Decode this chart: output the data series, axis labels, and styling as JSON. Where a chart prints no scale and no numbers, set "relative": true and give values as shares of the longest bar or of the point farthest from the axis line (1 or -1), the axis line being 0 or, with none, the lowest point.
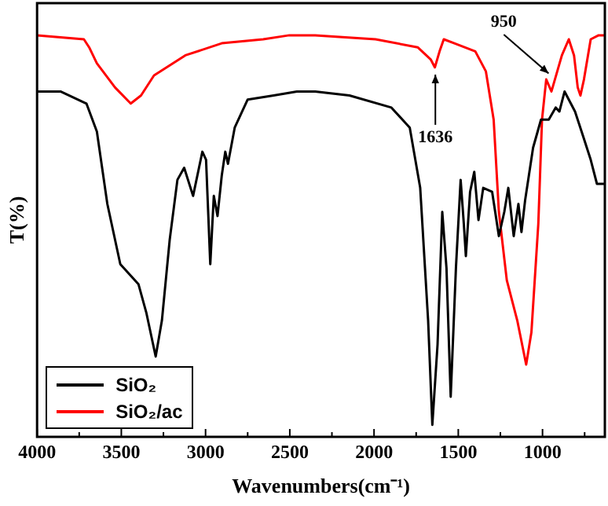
{
  "chart_data": {
    "type": "line",
    "xlabel": "Wavenumbers(cm⁻¹)",
    "ylabel": "T(%)",
    "relative": true,
    "tick_labels": "x",
    "legend": "bottom left",
    "grid": false,
    "marker": "none",
    "line_style": "solid",
    "xlim": [
      4000,
      630
    ],
    "xticks": [
      4000,
      {
        "value": 3750,
        "label": null
      },
      3500,
      {
        "value": 3250,
        "label": null
      },
      3000,
      {
        "value": 2750,
        "label": null
      },
      2500,
      {
        "value": 2250,
        "label": null
      },
      2000,
      {
        "value": 1750,
        "label": null
      },
      1500,
      {
        "value": 1250,
        "label": null
      },
      1000,
      {
        "value": 750,
        "label": null
      }
    ],
    "annotations": [
      {
        "text": "1636",
        "x": 1636,
        "y": 0.91
      },
      {
        "text": "950",
        "x": 950,
        "y": 0.9
      }
    ],
    "series": [
      {
        "name": "SiO₂",
        "color": "#000000",
        "x": [
          4000,
          3861,
          3707,
          3645,
          3583,
          3506,
          3398,
          3352,
          3296,
          3259,
          3213,
          3167,
          3127,
          3074,
          3019,
          2997,
          2972,
          2951,
          2929,
          2904,
          2883,
          2867,
          2827,
          2750,
          2596,
          2458,
          2349,
          2146,
          1897,
          1788,
          1726,
          1679,
          1654,
          1623,
          1595,
          1570,
          1545,
          1514,
          1486,
          1467,
          1455,
          1430,
          1405,
          1380,
          1352,
          1299,
          1259,
          1227,
          1203,
          1171,
          1143,
          1125,
          1103,
          1056,
          1009,
          963,
          922,
          900,
          869,
          807,
          760,
          714,
          677,
          630
        ],
        "values": [
          0.86,
          0.86,
          0.83,
          0.76,
          0.58,
          0.43,
          0.38,
          0.31,
          0.2,
          0.29,
          0.49,
          0.64,
          0.67,
          0.6,
          0.71,
          0.69,
          0.43,
          0.6,
          0.55,
          0.65,
          0.71,
          0.68,
          0.77,
          0.84,
          0.85,
          0.86,
          0.86,
          0.85,
          0.82,
          0.77,
          0.62,
          0.29,
          0.03,
          0.23,
          0.56,
          0.42,
          0.1,
          0.42,
          0.64,
          0.53,
          0.45,
          0.61,
          0.66,
          0.54,
          0.62,
          0.61,
          0.5,
          0.56,
          0.62,
          0.5,
          0.58,
          0.51,
          0.59,
          0.72,
          0.79,
          0.79,
          0.82,
          0.81,
          0.86,
          0.81,
          0.75,
          0.69,
          0.63,
          0.63
        ]
      },
      {
        "name": "SiO₂/ac",
        "color": "#ff0000",
        "x": [
          4000,
          3722,
          3691,
          3645,
          3537,
          3444,
          3383,
          3306,
          3120,
          2904,
          2658,
          2503,
          2458,
          2349,
          1991,
          1741,
          1664,
          1639,
          1611,
          1586,
          1523,
          1399,
          1336,
          1290,
          1259,
          1212,
          1150,
          1097,
          1066,
          1025,
          1003,
          978,
          947,
          885,
          844,
          813,
          791,
          775,
          754,
          714,
          667,
          630
        ],
        "values": [
          1.0,
          0.99,
          0.97,
          0.93,
          0.87,
          0.83,
          0.85,
          0.9,
          0.95,
          0.98,
          0.99,
          1.0,
          1.0,
          1.0,
          0.99,
          0.97,
          0.94,
          0.92,
          0.96,
          0.99,
          0.98,
          0.96,
          0.91,
          0.79,
          0.56,
          0.39,
          0.29,
          0.18,
          0.26,
          0.53,
          0.79,
          0.89,
          0.86,
          0.95,
          0.99,
          0.95,
          0.87,
          0.85,
          0.89,
          0.99,
          1.0,
          1.0
        ]
      }
    ]
  }
}
